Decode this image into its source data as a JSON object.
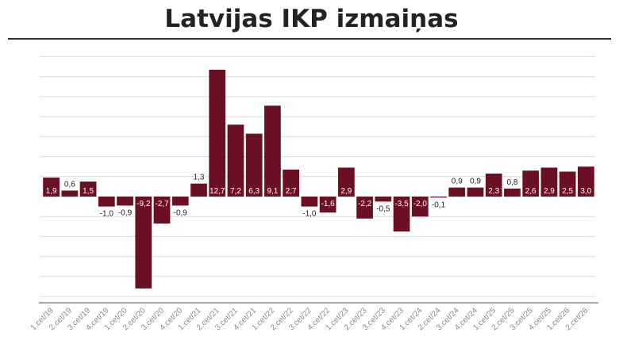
{
  "header": {
    "title": "Latvijas IKP izmaiņas"
  },
  "colors": {
    "bar": "#6b0f24",
    "label_inside": "#ffffff",
    "label_outside": "#222222",
    "axis": "#888888"
  },
  "chart_data": {
    "type": "bar",
    "title": "Latvijas IKP izmaiņas",
    "xlabel": "",
    "ylabel": "",
    "grid": true,
    "ylim": [
      -18,
      24
    ],
    "categories": [
      "1.cet/19",
      "2.cet/19",
      "3.cet/19",
      "4.cet/19",
      "1.cet/20",
      "2.cet/20",
      "3.cet/20",
      "4.cet/20",
      "1.cet/21",
      "2.cet/21",
      "3.cet/21",
      "4.cet/21",
      "1.cet/22",
      "2.cet/22",
      "3.cet/22",
      "4.cet/22",
      "1.cet/23",
      "2.cet/23",
      "3.cet/23",
      "4.cet/23",
      "1.cet/24",
      "2.cet/24",
      "3.cet/24",
      "4.cet/24",
      "1.cet/25",
      "2.cet/25",
      "3.cet/25",
      "4.cet/25",
      "1.cet/26",
      "2.cet/26"
    ],
    "values": [
      1.9,
      0.6,
      1.5,
      -1.0,
      -0.9,
      -9.2,
      -2.7,
      -0.9,
      1.3,
      12.7,
      7.2,
      6.3,
      9.1,
      2.7,
      -1.0,
      -1.6,
      2.9,
      -2.2,
      -0.5,
      -3.5,
      -2.0,
      -0.1,
      0.9,
      0.9,
      2.3,
      0.8,
      2.6,
      2.9,
      2.5,
      3.0
    ],
    "labels": [
      "1,9",
      "0,6",
      "1,5",
      "-1,0",
      "-0,9",
      "-9,2",
      "-2,7",
      "-0,9",
      "1,3",
      "12,7",
      "7,2",
      "6,3",
      "9,1",
      "2,7",
      "-1,0",
      "-1,6",
      "2,9",
      "-2,2",
      "-0,5",
      "-3,5",
      "-2,0",
      "-0,1",
      "0,9",
      "0,9",
      "2,3",
      "0,8",
      "2,6",
      "2,9",
      "2,5",
      "3,0"
    ]
  }
}
